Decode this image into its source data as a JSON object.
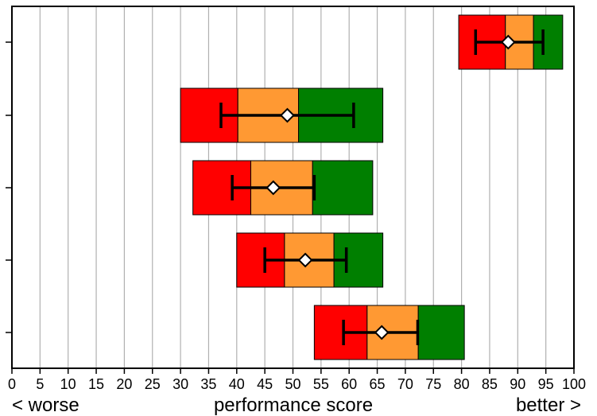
{
  "chart_data": {
    "type": "bar",
    "subtype": "bullet-range",
    "xlabel": "performance score",
    "x_left_note": "< worse",
    "x_right_note": "better >",
    "xlim": [
      0,
      100
    ],
    "x_ticks": [
      "0",
      "5",
      "10",
      "15",
      "20",
      "25",
      "30",
      "35",
      "40",
      "45",
      "50",
      "55",
      "60",
      "65",
      "70",
      "75",
      "80",
      "85",
      "90",
      "95",
      "100"
    ],
    "grid": "vertical",
    "band_colors": {
      "low": "#ff0000",
      "mid": "#ff9933",
      "high": "#007f00"
    },
    "marker_style": "white-diamond-with-error-bar",
    "rows": [
      {
        "bands": [
          79.5,
          87.8,
          92.8,
          98
        ],
        "marker": 88.3,
        "err": [
          82.5,
          94.5
        ]
      },
      {
        "bands": [
          30,
          40.2,
          51,
          66
        ],
        "marker": 49,
        "err": [
          37.2,
          60.8
        ]
      },
      {
        "bands": [
          32.2,
          42.5,
          53.5,
          64.2
        ],
        "marker": 46.5,
        "err": [
          39.2,
          53.8
        ]
      },
      {
        "bands": [
          40,
          48.5,
          57.3,
          66
        ],
        "marker": 52.2,
        "err": [
          45,
          59.5
        ]
      },
      {
        "bands": [
          53.8,
          63.2,
          72.3,
          80.5
        ],
        "marker": 65.8,
        "err": [
          59,
          72.2
        ]
      }
    ]
  }
}
